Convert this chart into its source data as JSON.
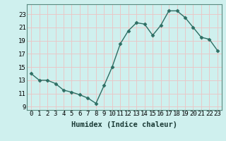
{
  "x": [
    0,
    1,
    2,
    3,
    4,
    5,
    6,
    7,
    8,
    9,
    10,
    11,
    12,
    13,
    14,
    15,
    16,
    17,
    18,
    19,
    20,
    21,
    22,
    23
  ],
  "y": [
    14.0,
    13.0,
    13.0,
    12.5,
    11.5,
    11.2,
    10.8,
    10.3,
    9.5,
    12.2,
    15.0,
    18.5,
    20.5,
    21.7,
    21.5,
    19.8,
    21.3,
    23.5,
    23.5,
    22.5,
    21.0,
    19.5,
    19.2,
    17.5
  ],
  "line_color": "#2d6e63",
  "marker": "D",
  "marker_size": 2.5,
  "background_color": "#cff0ee",
  "grid_color": "#e8c8c8",
  "xlabel": "Humidex (Indice chaleur)",
  "xlim": [
    -0.5,
    23.5
  ],
  "ylim": [
    8.5,
    24.5
  ],
  "yticks": [
    9,
    11,
    13,
    15,
    17,
    19,
    21,
    23
  ],
  "xlabel_fontsize": 7.5,
  "tick_fontsize": 6.5,
  "line_width": 1.0
}
